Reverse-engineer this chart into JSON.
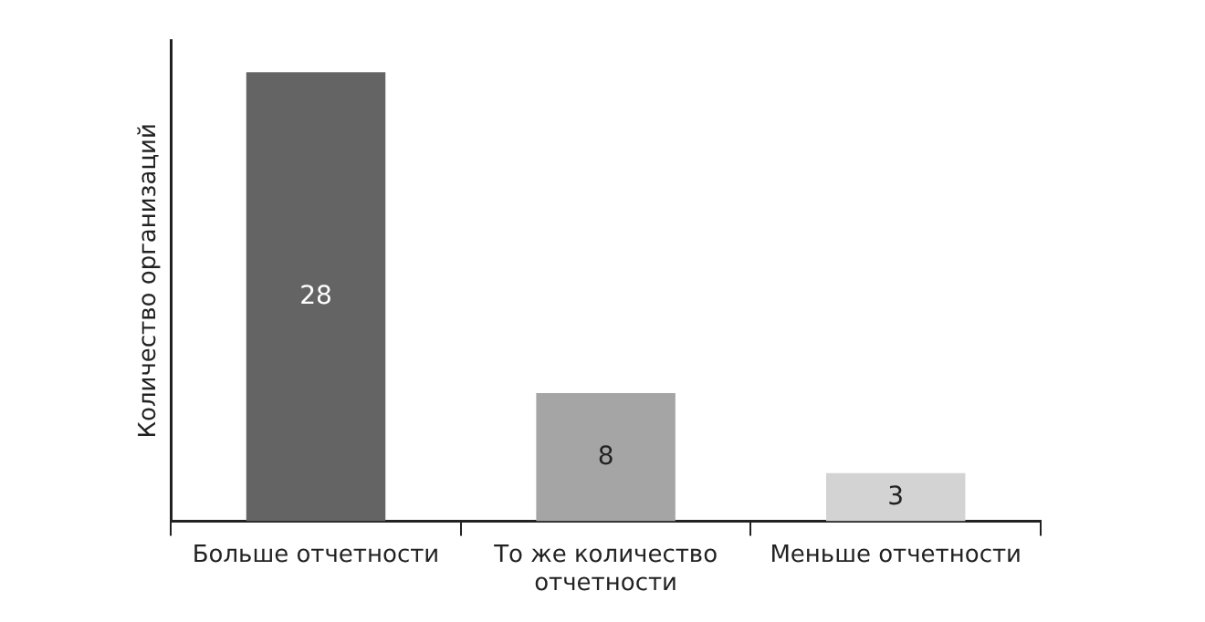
{
  "chart_data": {
    "type": "bar",
    "ylabel": "Количество организаций",
    "categories": [
      "Больше отчетности",
      "То же количество отчетности",
      "Меньше отчетности"
    ],
    "values": [
      28,
      8,
      3
    ],
    "colors": [
      "#646464",
      "#a5a5a5",
      "#d3d3d3"
    ],
    "ylim": [
      0,
      30
    ],
    "tick_labels": "x",
    "data_labels": true,
    "grid": false,
    "legend": false
  }
}
